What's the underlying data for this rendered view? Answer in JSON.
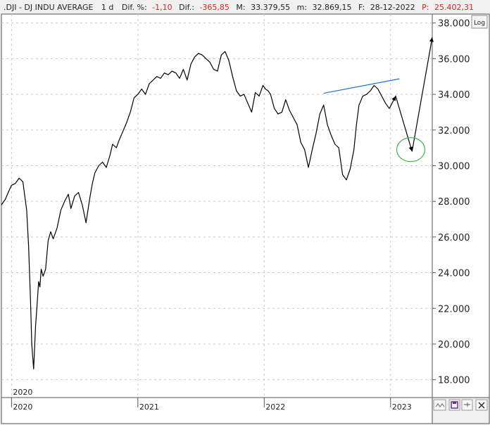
{
  "header": {
    "symbol": ".DJI - DJ INDU AVERAGE",
    "interval": "1 d",
    "dif_pct_label": "Dif. %:",
    "dif_pct_value": "-1,10",
    "dif_label": "Dif.:",
    "dif_value": "-365,85",
    "m_label": "M:",
    "m_value": "33.379,55",
    "m2_label": "m:",
    "m2_value": "32.869,15",
    "date_label": "F:",
    "date_value": "28-12-2022",
    "p_label": "P:",
    "p_value": "25.402,31"
  },
  "toolbar": {
    "log_label": "Log"
  },
  "colors": {
    "price": "#000000",
    "trendline": "#1f6fd1",
    "projection": "#000000",
    "target_circle": "#4caf50",
    "red_text": "#e02020",
    "frame": "#555555",
    "plot_bg": "#ffffff"
  },
  "chart_data": {
    "type": "line",
    "ylim": [
      17000,
      38500
    ],
    "xlim": [
      2019.92,
      2023.33
    ],
    "grid": true,
    "ytick_labels": [
      "38.000",
      "36.000",
      "34.000",
      "32.000",
      "30.000",
      "28.000",
      "26.000",
      "24.000",
      "22.000",
      "20.000",
      "18.000"
    ],
    "yticks": [
      38000,
      36000,
      34000,
      32000,
      30000,
      28000,
      26000,
      24000,
      22000,
      20000,
      18000
    ],
    "xtick_labels": [
      "2020",
      "2021",
      "2022",
      "2023"
    ],
    "xticks": [
      2020,
      2021,
      2022,
      2023
    ],
    "top_label": "2020",
    "series": [
      {
        "x": [
          2019.92,
          2019.95,
          2019.98,
          2020.0,
          2020.03,
          2020.06,
          2020.09,
          2020.12,
          2020.135,
          2020.15,
          2020.16,
          2020.175,
          2020.19,
          2020.2,
          2020.215,
          2020.225,
          2020.235,
          2020.25,
          2020.27,
          2020.29,
          2020.31,
          2020.33,
          2020.36,
          2020.39,
          2020.42,
          2020.45,
          2020.47,
          2020.5,
          2020.53,
          2020.56,
          2020.59,
          2020.62,
          2020.64,
          2020.66,
          2020.69,
          2020.72,
          2020.75,
          2020.78,
          2020.8,
          2020.83,
          2020.85,
          2020.88,
          2020.91,
          2020.94,
          2020.97,
          2021.0,
          2021.03,
          2021.06,
          2021.09,
          2021.12,
          2021.15,
          2021.18,
          2021.21,
          2021.24,
          2021.27,
          2021.3,
          2021.33,
          2021.36,
          2021.39,
          2021.42,
          2021.45,
          2021.48,
          2021.51,
          2021.54,
          2021.57,
          2021.6,
          2021.63,
          2021.66,
          2021.69,
          2021.72,
          2021.75,
          2021.78,
          2021.81,
          2021.84,
          2021.87,
          2021.9,
          2021.93,
          2021.96,
          2021.99,
          2022.01,
          2022.03,
          2022.05,
          2022.08,
          2022.11,
          2022.14,
          2022.17,
          2022.2,
          2022.23,
          2022.26,
          2022.29,
          2022.32,
          2022.35,
          2022.38,
          2022.41,
          2022.44,
          2022.47,
          2022.5,
          2022.53,
          2022.56,
          2022.59,
          2022.62,
          2022.65,
          2022.68,
          2022.71,
          2022.73,
          2022.75,
          2022.78,
          2022.81,
          2022.84,
          2022.87,
          2022.9,
          2022.93,
          2022.96,
          2022.99
        ],
        "values": [
          27800,
          28100,
          28600,
          28900,
          29000,
          29300,
          29100,
          27500,
          25500,
          22500,
          20000,
          18600,
          21000,
          22000,
          23500,
          23200,
          24200,
          23800,
          24200,
          25800,
          26300,
          25900,
          26500,
          27500,
          28000,
          28400,
          27600,
          28300,
          28500,
          27800,
          26800,
          28200,
          29000,
          29600,
          30000,
          30200,
          29900,
          30600,
          31200,
          31000,
          31400,
          31900,
          32400,
          33000,
          33800,
          34000,
          34300,
          34000,
          34600,
          34800,
          35000,
          34900,
          35200,
          35100,
          35300,
          35200,
          34900,
          35400,
          34800,
          35700,
          36100,
          36300,
          36200,
          36000,
          35800,
          35400,
          35300,
          36200,
          36400,
          35900,
          35000,
          34200,
          33900,
          34000,
          33500,
          33000,
          34100,
          33900,
          34500,
          34300,
          34200,
          34000,
          33200,
          32900,
          33000,
          33700,
          33100,
          32700,
          32300,
          31300,
          30900,
          29900,
          30900,
          31800,
          32900,
          33400,
          32300,
          31700,
          31200,
          31000,
          29500,
          29200,
          29800,
          30900,
          32300,
          33400,
          33900,
          34000,
          34200,
          34500,
          34300,
          33900,
          33500,
          33200
        ]
      }
    ],
    "trendline": {
      "x": [
        2022.47,
        2023.07
      ],
      "values": [
        34060,
        34870
      ]
    },
    "projection": {
      "x": [
        2022.99,
        2023.04,
        2023.17,
        2023.33
      ],
      "values": [
        33200,
        33900,
        30800,
        37200
      ]
    },
    "target_circle": {
      "x": 2023.16,
      "y": 30900
    }
  }
}
